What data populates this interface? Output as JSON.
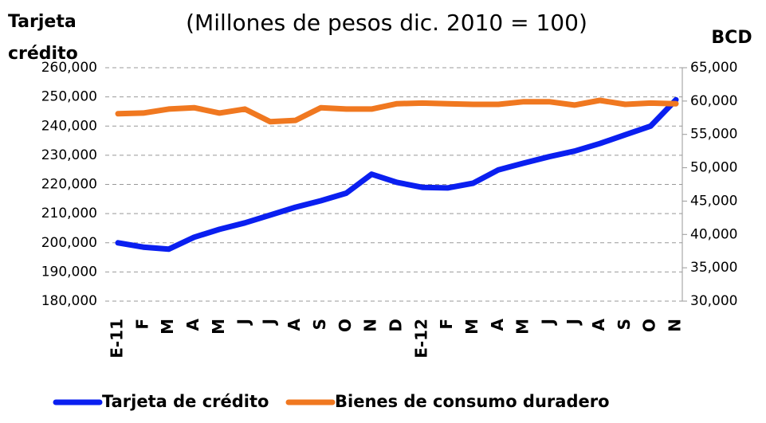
{
  "chart_data": {
    "type": "line",
    "title": "(Millones de pesos dic. 2010 = 100)",
    "y_label": [
      "Tarjeta",
      "crédito"
    ],
    "y2_label": "BCD",
    "categories": [
      "E-11",
      "F",
      "M",
      "A",
      "M",
      "J",
      "J",
      "A",
      "S",
      "O",
      "N",
      "D",
      "E-12",
      "F",
      "M",
      "A",
      "M",
      "J",
      "J",
      "A",
      "S",
      "O",
      "N"
    ],
    "ylim": [
      180000,
      260000
    ],
    "yticks": [
      {
        "value": 180000,
        "label": "180,000"
      },
      {
        "value": 190000,
        "label": "190,000"
      },
      {
        "value": 200000,
        "label": "200,000"
      },
      {
        "value": 210000,
        "label": "210,000"
      },
      {
        "value": 220000,
        "label": "220,000"
      },
      {
        "value": 230000,
        "label": "230,000"
      },
      {
        "value": 240000,
        "label": "240,000"
      },
      {
        "value": 250000,
        "label": "250,000"
      },
      {
        "value": 260000,
        "label": "260,000"
      }
    ],
    "y2lim": [
      30000,
      65000
    ],
    "y2ticks": [
      {
        "value": 30000,
        "label": "30,000"
      },
      {
        "value": 35000,
        "label": "35,000"
      },
      {
        "value": 40000,
        "label": "40,000"
      },
      {
        "value": 45000,
        "label": "45,000"
      },
      {
        "value": 50000,
        "label": "50,000"
      },
      {
        "value": 55000,
        "label": "55,000"
      },
      {
        "value": 60000,
        "label": "60,000"
      },
      {
        "value": 65000,
        "label": "65,000"
      }
    ],
    "grid": true,
    "legend": "bottom",
    "series": [
      {
        "name": "Tarjeta de crédito",
        "color": "#0a1ff0",
        "axis": "y",
        "values": [
          200000,
          198500,
          197800,
          201900,
          204600,
          206800,
          209500,
          212200,
          214400,
          217000,
          223500,
          220700,
          219000,
          218800,
          220400,
          225000,
          227300,
          229500,
          231400,
          234000,
          237000,
          240000,
          249000
        ]
      },
      {
        "name": "Bienes de consumo duradero",
        "color": "#f07820",
        "axis": "y2",
        "values": [
          58100,
          58200,
          58800,
          59000,
          58200,
          58800,
          56900,
          57100,
          59000,
          58800,
          58800,
          59600,
          59700,
          59600,
          59500,
          59500,
          59900,
          59900,
          59400,
          60100,
          59500,
          59700,
          59600
        ]
      }
    ]
  }
}
